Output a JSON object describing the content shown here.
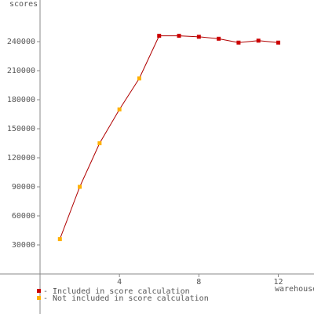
{
  "chart_data": {
    "type": "line",
    "y_label": "scores",
    "x_label": "warehouses",
    "x": [
      1,
      2,
      3,
      4,
      5,
      6,
      7,
      8,
      9,
      10,
      11,
      12
    ],
    "series": [
      {
        "name": "- Included in score calculation",
        "color": "#cc0000",
        "values": [
          null,
          null,
          null,
          null,
          null,
          246000,
          246000,
          245000,
          243000,
          239000,
          241000,
          239000
        ]
      },
      {
        "name": "- Not included in score calculation",
        "color": "#ffb000",
        "values": [
          36000,
          90000,
          135000,
          170000,
          202000,
          null,
          null,
          null,
          null,
          null,
          null,
          null
        ]
      }
    ],
    "line_color": "#b00000",
    "xlim": [
      0,
      13.8
    ],
    "xticks": [
      4,
      8,
      12
    ],
    "ylim": [
      0,
      283000
    ],
    "yticks": [
      30000,
      60000,
      90000,
      120000,
      150000,
      180000,
      210000,
      240000
    ]
  }
}
